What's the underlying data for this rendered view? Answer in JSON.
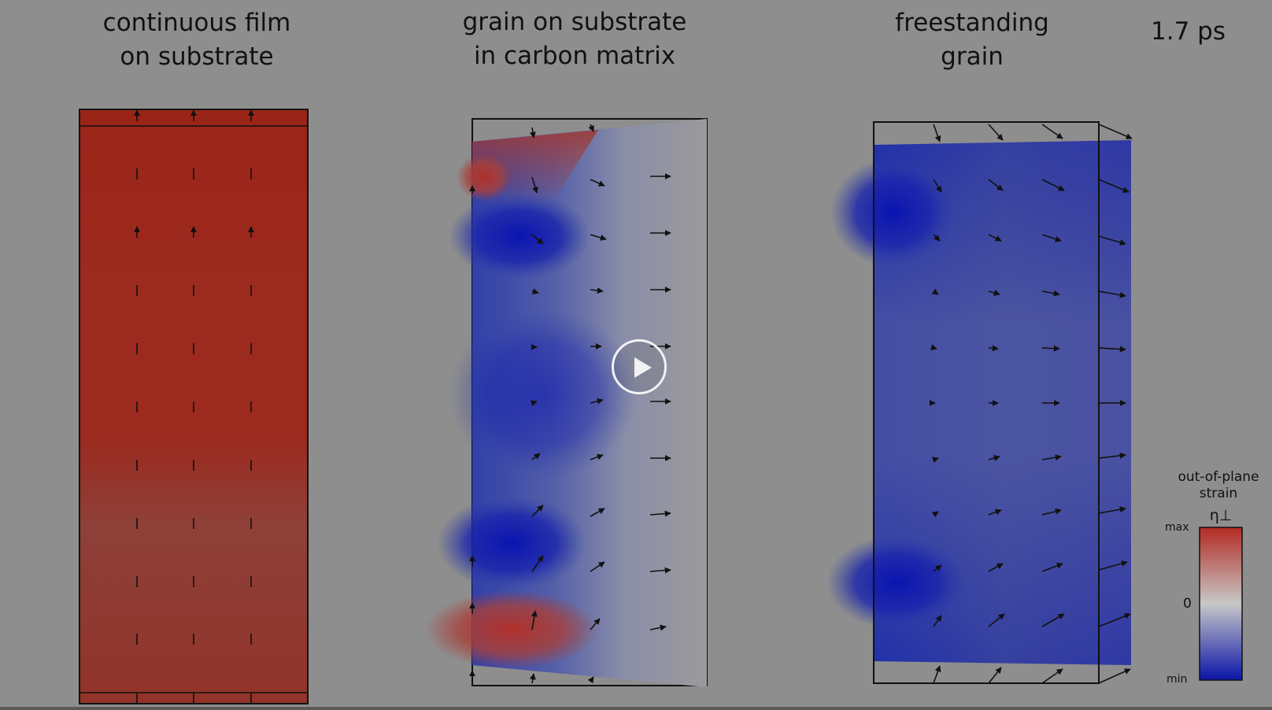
{
  "panels": [
    {
      "title_line1": "continuous film",
      "title_line2": "on substrate"
    },
    {
      "title_line1": "grain on substrate",
      "title_line2": "in carbon matrix"
    },
    {
      "title_line1": "freestanding",
      "title_line2": "grain"
    }
  ],
  "timestamp": "1.7 ps",
  "colorbar": {
    "title_line1": "out-of-plane",
    "title_line2": "strain",
    "symbol": "η⊥",
    "max_label": "max",
    "zero_label": "0",
    "min_label": "min",
    "color_max": "#b22a22",
    "color_zero": "#c8c8c8",
    "color_min": "#0a14a8"
  },
  "colors": {
    "background": "#8e8e8e",
    "strain_positive": "#9e2a1e",
    "strain_negative": "#1a2aa8",
    "neutral": "#9a9a9a"
  },
  "controls": {
    "play_icon": "play-icon"
  }
}
